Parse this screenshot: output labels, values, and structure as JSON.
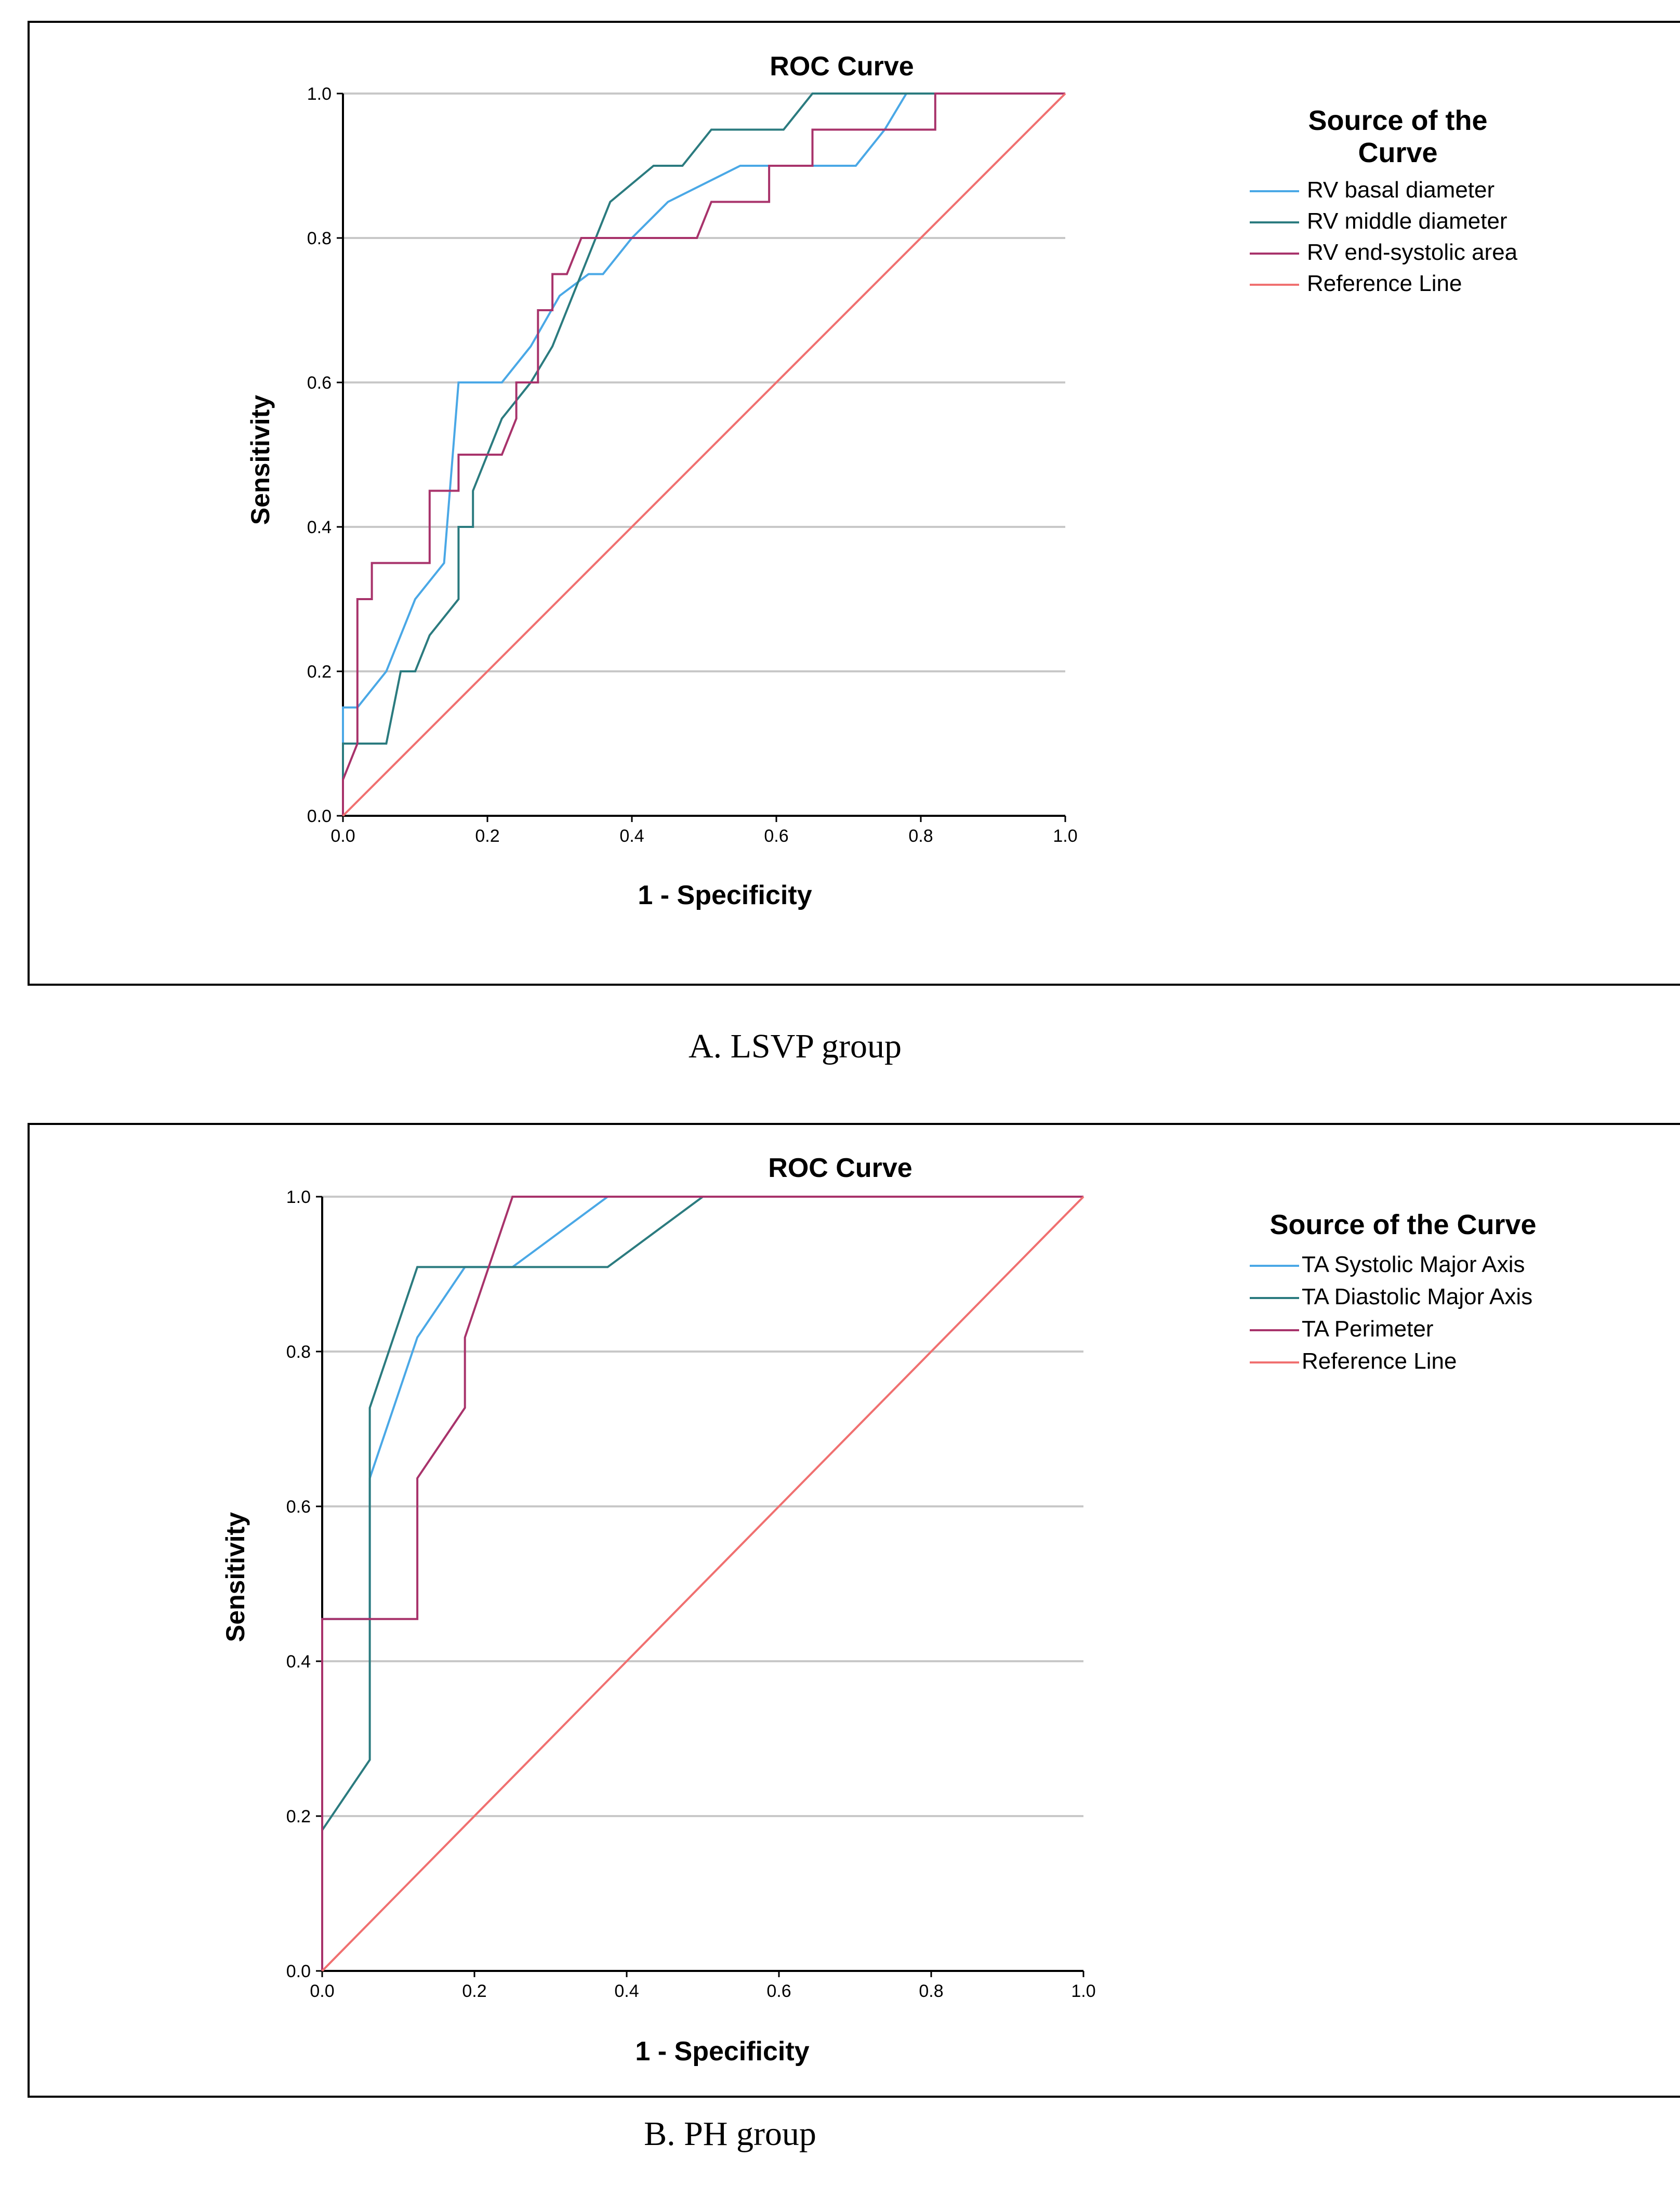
{
  "colors": {
    "series_1": "#4aa8e6",
    "series_2": "#2b7b7f",
    "series_3": "#a8336b",
    "reference": "#f07070",
    "grid": "#c8c8c8",
    "frame": "#000000"
  },
  "chart_data": [
    {
      "type": "line",
      "title": "ROC Curve",
      "xlabel": "1 - Specificity",
      "ylabel": "Sensitivity",
      "caption": "A. LSVP group",
      "xlim": [
        0,
        1
      ],
      "ylim": [
        0,
        1
      ],
      "xticks": [
        "0.0",
        "0.2",
        "0.4",
        "0.6",
        "0.8",
        "1.0"
      ],
      "yticks": [
        "0.0",
        "0.2",
        "0.4",
        "0.6",
        "0.8",
        "1.0"
      ],
      "grid": "horizontal",
      "legend_title": "Source of the Curve",
      "legend_position": "right",
      "series": [
        {
          "name": "RV basal diameter",
          "color": "#4aa8e6",
          "x": [
            0,
            0,
            0.02,
            0.06,
            0.1,
            0.14,
            0.16,
            0.22,
            0.26,
            0.3,
            0.34,
            0.36,
            0.4,
            0.45,
            0.55,
            0.6,
            0.71,
            0.75,
            0.78,
            0.82,
            1
          ],
          "y": [
            0,
            0.15,
            0.15,
            0.2,
            0.3,
            0.35,
            0.6,
            0.6,
            0.65,
            0.72,
            0.75,
            0.75,
            0.8,
            0.85,
            0.9,
            0.9,
            0.9,
            0.95,
            1,
            1,
            1
          ]
        },
        {
          "name": "RV middle diameter",
          "color": "#2b7b7f",
          "x": [
            0,
            0,
            0.06,
            0.08,
            0.1,
            0.12,
            0.16,
            0.16,
            0.18,
            0.18,
            0.22,
            0.26,
            0.29,
            0.33,
            0.37,
            0.43,
            0.47,
            0.51,
            0.55,
            0.61,
            0.65,
            0.7,
            1
          ],
          "y": [
            0,
            0.1,
            0.1,
            0.2,
            0.2,
            0.25,
            0.3,
            0.4,
            0.4,
            0.45,
            0.55,
            0.6,
            0.65,
            0.75,
            0.85,
            0.9,
            0.9,
            0.95,
            0.95,
            0.95,
            1,
            1,
            1
          ]
        },
        {
          "name": "RV end-systolic area",
          "color": "#a8336b",
          "x": [
            0,
            0,
            0.02,
            0.02,
            0.04,
            0.04,
            0.12,
            0.12,
            0.16,
            0.16,
            0.22,
            0.24,
            0.24,
            0.27,
            0.27,
            0.29,
            0.29,
            0.31,
            0.33,
            0.49,
            0.51,
            0.59,
            0.59,
            0.65,
            0.65,
            0.82,
            0.82,
            1
          ],
          "y": [
            0,
            0.05,
            0.1,
            0.3,
            0.3,
            0.35,
            0.35,
            0.45,
            0.45,
            0.5,
            0.5,
            0.55,
            0.6,
            0.6,
            0.7,
            0.7,
            0.75,
            0.75,
            0.8,
            0.8,
            0.85,
            0.85,
            0.9,
            0.9,
            0.95,
            0.95,
            1,
            1
          ]
        },
        {
          "name": "Reference Line",
          "color": "#f07070",
          "x": [
            0,
            1
          ],
          "y": [
            0,
            1
          ]
        }
      ]
    },
    {
      "type": "line",
      "title": "ROC Curve",
      "xlabel": "1 - Specificity",
      "ylabel": "Sensitivity",
      "caption": "B. PH group",
      "xlim": [
        0,
        1
      ],
      "ylim": [
        0,
        1
      ],
      "xticks": [
        "0.0",
        "0.2",
        "0.4",
        "0.6",
        "0.8",
        "1.0"
      ],
      "yticks": [
        "0.0",
        "0.2",
        "0.4",
        "0.6",
        "0.8",
        "1.0"
      ],
      "grid": "horizontal",
      "legend_title": "Source of the Curve",
      "legend_position": "right",
      "series": [
        {
          "name": "TA Systolic Major Axis",
          "color": "#4aa8e6",
          "x": [
            0,
            0,
            0.0625,
            0.0625,
            0.125,
            0.1875,
            0.25,
            0.375,
            0.5,
            1
          ],
          "y": [
            0,
            0.4545,
            0.4545,
            0.6364,
            0.8182,
            0.9091,
            0.9091,
            1,
            1,
            1
          ]
        },
        {
          "name": "TA Diastolic Major Axis",
          "color": "#2b7b7f",
          "x": [
            0,
            0,
            0.0625,
            0.0625,
            0.125,
            0.375,
            0.5,
            1
          ],
          "y": [
            0,
            0.1818,
            0.2727,
            0.7273,
            0.9091,
            0.9091,
            1,
            1
          ]
        },
        {
          "name": "TA Perimeter",
          "color": "#a8336b",
          "x": [
            0,
            0,
            0.125,
            0.125,
            0.1875,
            0.1875,
            0.25,
            1
          ],
          "y": [
            0,
            0.4545,
            0.4545,
            0.6364,
            0.7273,
            0.8182,
            1,
            1
          ]
        },
        {
          "name": "Reference Line",
          "color": "#f07070",
          "x": [
            0,
            1
          ],
          "y": [
            0,
            1
          ]
        }
      ]
    }
  ]
}
